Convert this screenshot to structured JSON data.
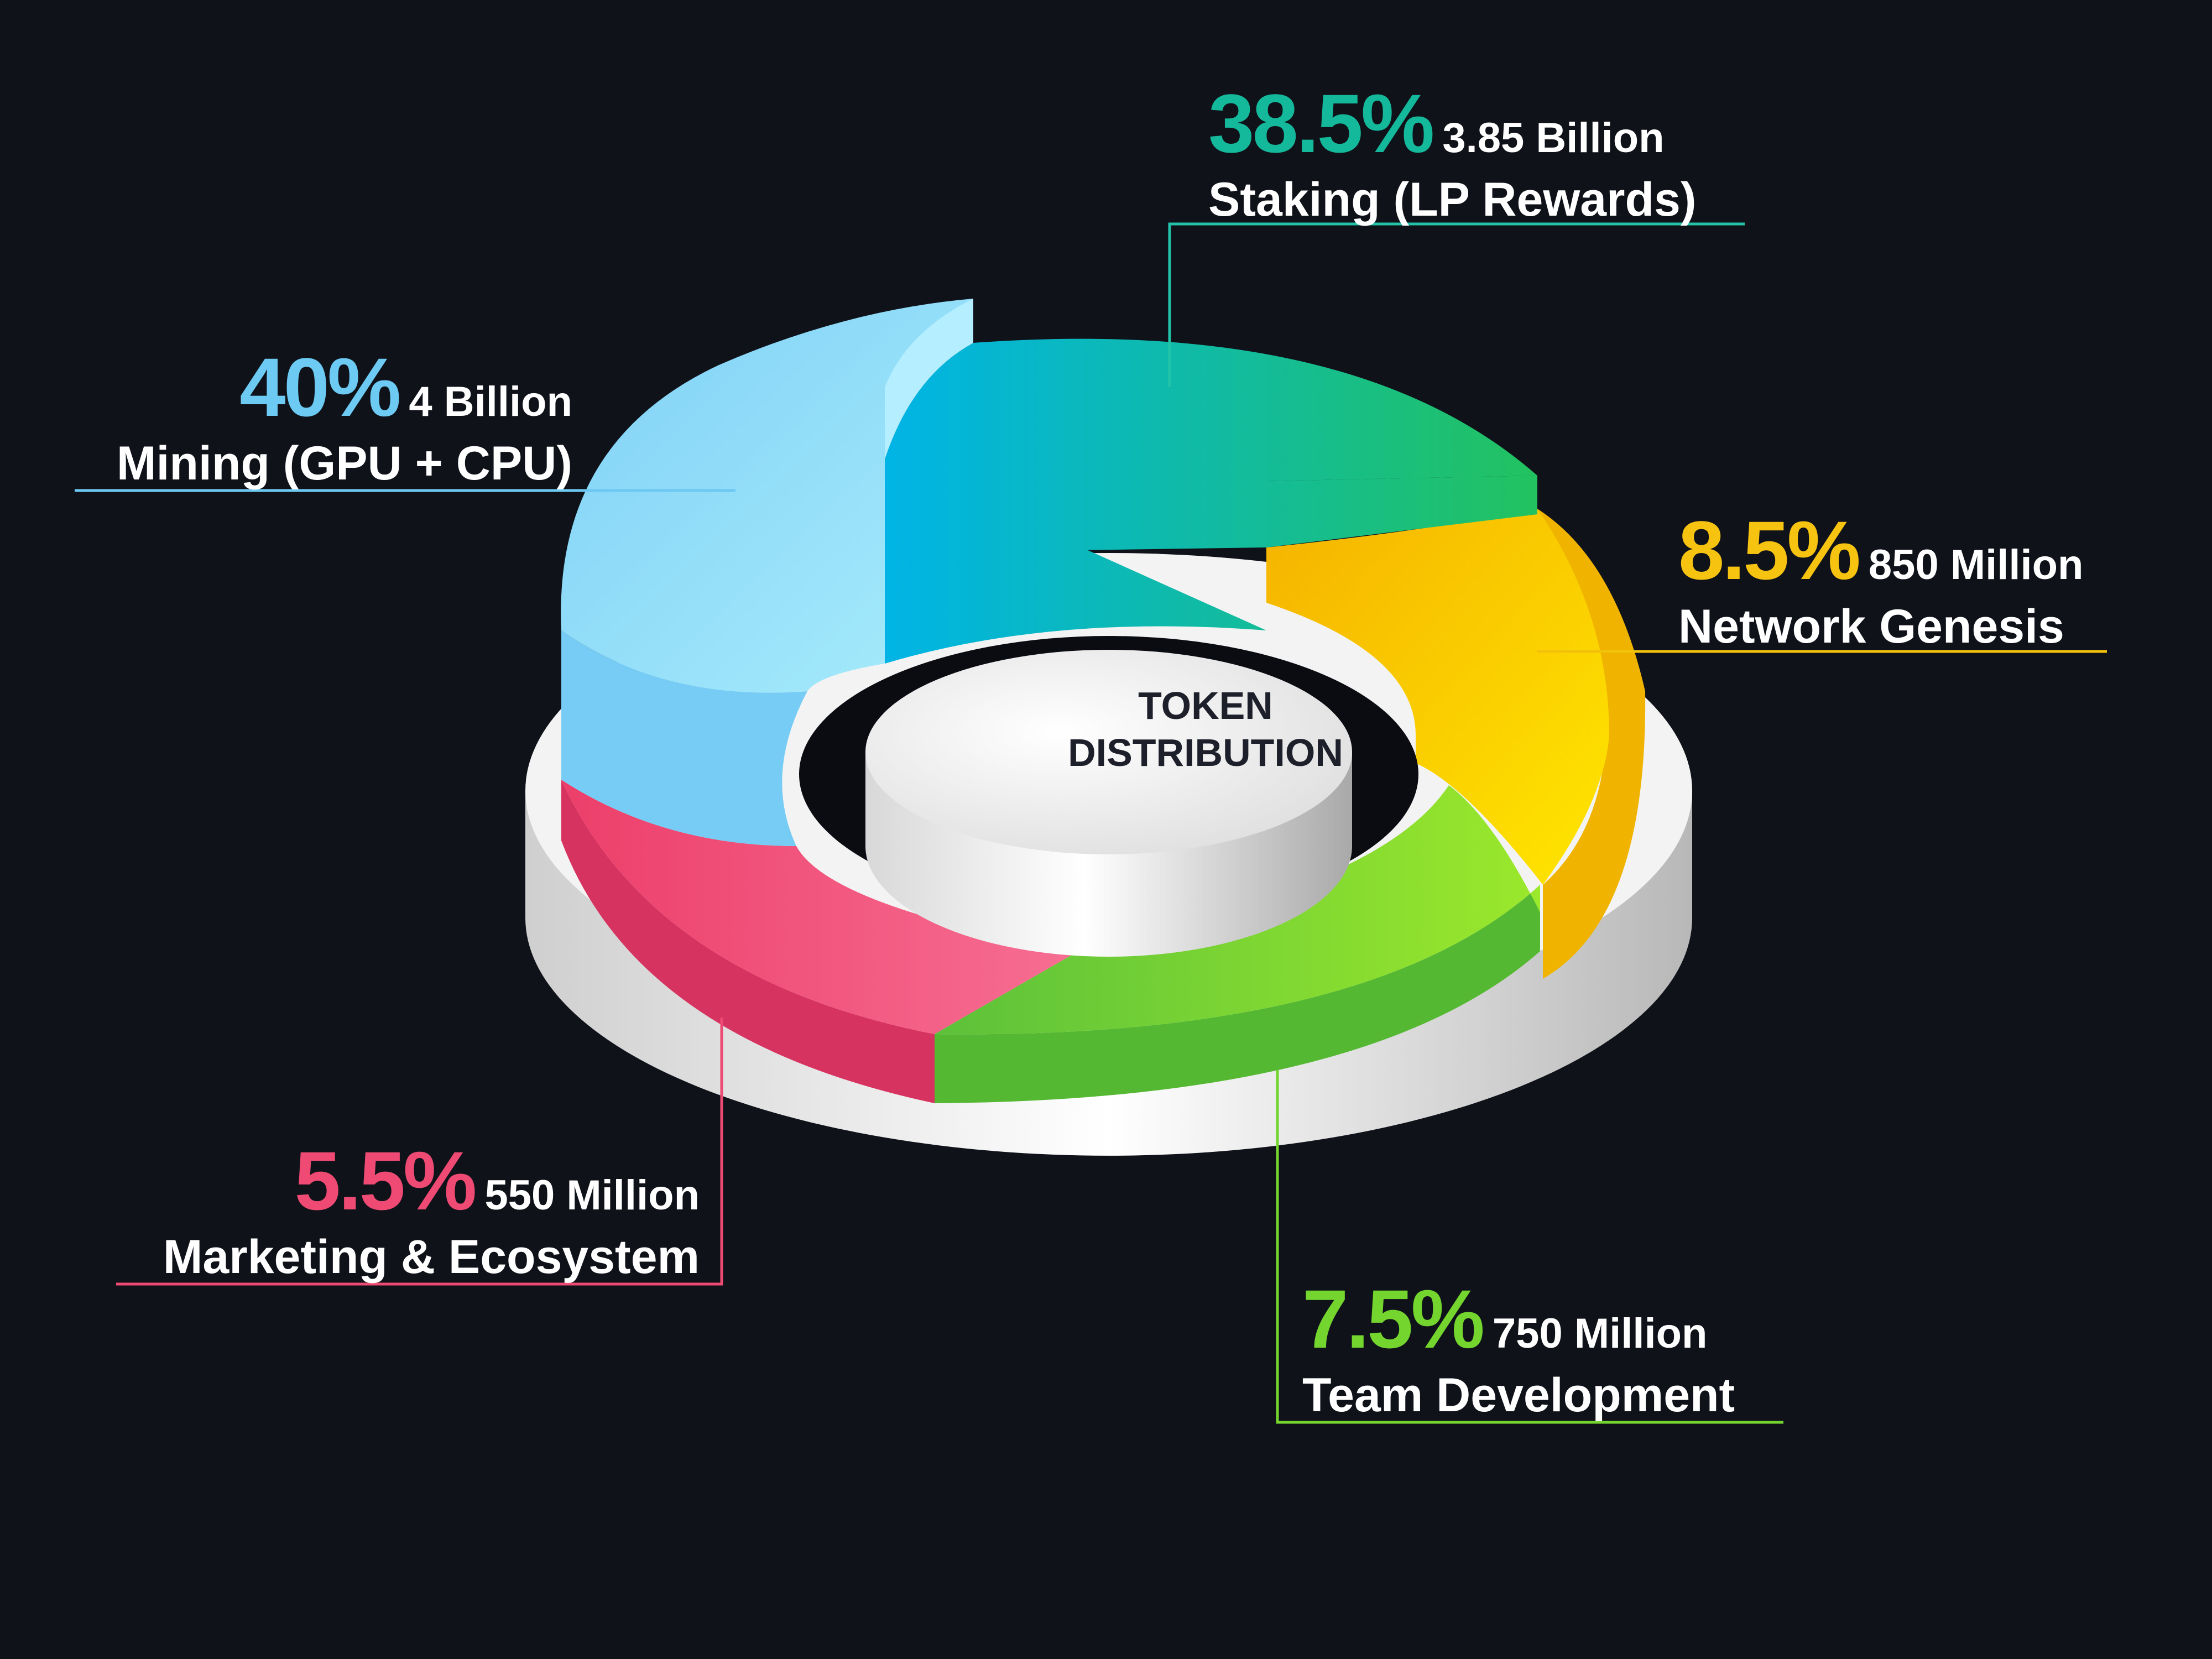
{
  "chart_data": {
    "type": "pie",
    "title": "TOKEN DISTRIBUTION",
    "slices": [
      {
        "label": "Mining (GPU + CPU)",
        "percent": 40,
        "amount": "4 Billion",
        "percent_text": "40%",
        "color": "#7fd3f7"
      },
      {
        "label": "Staking (LP Rewards)",
        "percent": 38.5,
        "amount": "3.85 Billion",
        "percent_text": "38.5%",
        "color": "#14b8a6"
      },
      {
        "label": "Network Genesis",
        "percent": 8.5,
        "amount": "850 Million",
        "percent_text": "8.5%",
        "color": "#f8c21a"
      },
      {
        "label": "Team Development",
        "percent": 7.5,
        "amount": "750 Million",
        "percent_text": "7.5%",
        "color": "#7bd82e"
      },
      {
        "label": "Marketing & Ecosystem",
        "percent": 5.5,
        "amount": "550 Million",
        "percent_text": "5.5%",
        "color": "#ee4a73"
      }
    ]
  },
  "center_label": {
    "line1": "TOKEN",
    "line2": "DISTRIBUTION"
  },
  "colors": {
    "background": "#10121a",
    "base": "#e9e9e9",
    "center_disc": "#f2f2f2",
    "hole": "#0b0c12"
  }
}
